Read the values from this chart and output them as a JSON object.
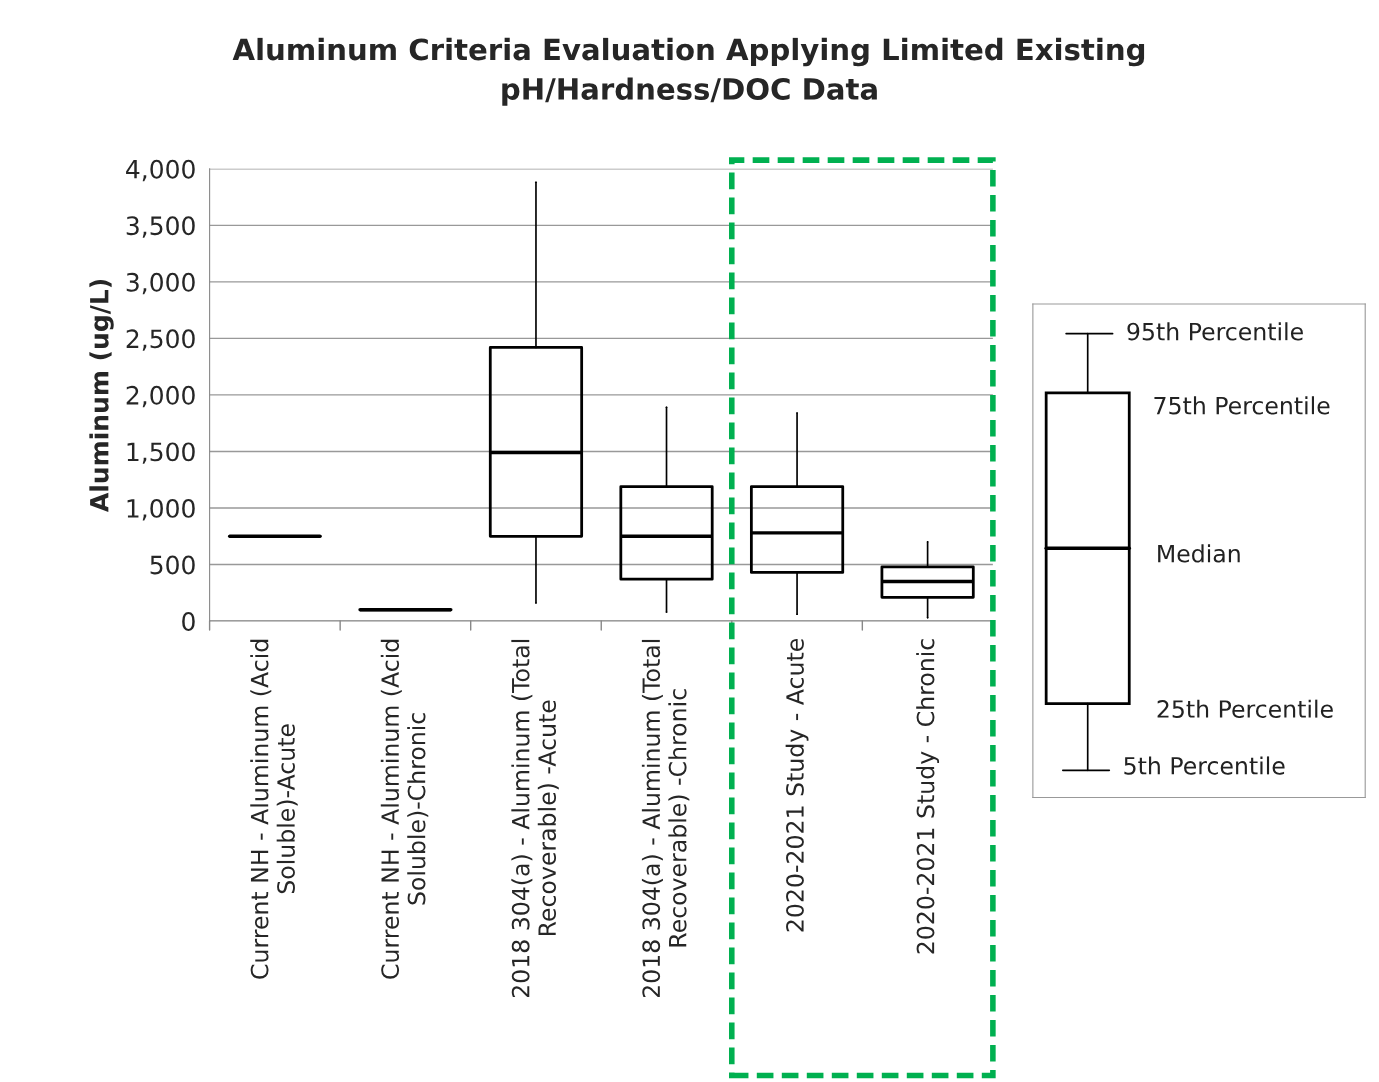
{
  "chart_data": {
    "type": "box",
    "title": "Aluminum Criteria Evaluation Applying Limited Existing\npH/Hardness/DOC Data",
    "ylabel": "Aluminum (ug/L)",
    "categories": [
      "Current NH - Aluminum (Acid\nSoluble)-Acute",
      "Current NH - Aluminum (Acid\nSoluble)-Chronic",
      "2018 304(a) - Aluminum (Total\nRecoverable) -Acute",
      "2018 304(a) - Aluminum (Total\nRecoverable) -Chronic",
      "2020-2021 Study - Acute",
      "2020-2021 Study - Chronic"
    ],
    "boxes": [
      {
        "low": 750,
        "q1": 750,
        "median": 750,
        "q3": 750,
        "high": 750
      },
      {
        "low": 100,
        "q1": 100,
        "median": 100,
        "q3": 100,
        "high": 100
      },
      {
        "low": 160,
        "q1": 750,
        "median": 1490,
        "q3": 2420,
        "high": 3880
      },
      {
        "low": 80,
        "q1": 370,
        "median": 750,
        "q3": 1190,
        "high": 1890
      },
      {
        "low": 60,
        "q1": 430,
        "median": 780,
        "q3": 1190,
        "high": 1840
      },
      {
        "low": 30,
        "q1": 210,
        "median": 350,
        "q3": 480,
        "high": 700
      }
    ],
    "ylim": [
      0,
      4000
    ],
    "yticks": [
      {
        "value": 0,
        "label": "0"
      },
      {
        "value": 500,
        "label": "500"
      },
      {
        "value": 1000,
        "label": "1,000"
      },
      {
        "value": 1500,
        "label": "1,500"
      },
      {
        "value": 2000,
        "label": "2,000"
      },
      {
        "value": 2500,
        "label": "2,500"
      },
      {
        "value": 3000,
        "label": "3,000"
      },
      {
        "value": 3500,
        "label": "3,500"
      },
      {
        "value": 4000,
        "label": "4,000"
      }
    ],
    "grid": "y",
    "annotations": [
      "95th Percentile",
      "75th Percentile",
      "Median",
      "25th Percentile",
      "5th Percentile"
    ]
  }
}
